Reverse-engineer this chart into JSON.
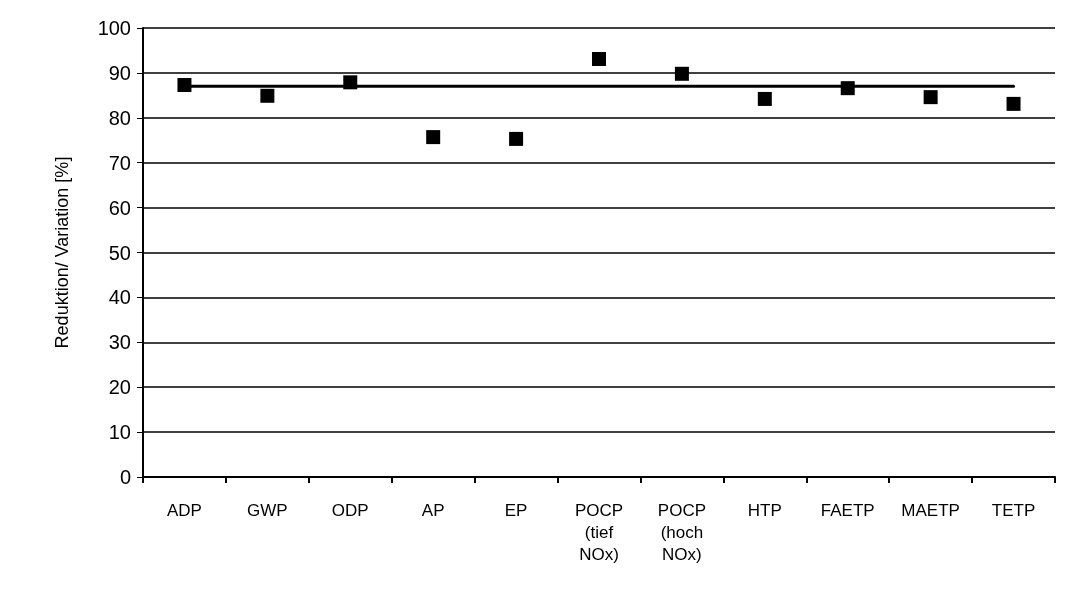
{
  "chart_data": {
    "type": "scatter",
    "ylabel": "Reduktion/ Variation [%]",
    "categories": [
      "ADP",
      "GWP",
      "ODP",
      "AP",
      "EP",
      "POCP (tief NOx)",
      "POCP (hoch NOx)",
      "HTP",
      "FAETP",
      "MAETP",
      "TETP"
    ],
    "series": [
      {
        "color": "#000000",
        "marker": "square",
        "values": [
          87.3,
          84.9,
          87.9,
          75.7,
          75.3,
          93.1,
          89.8,
          84.2,
          86.6,
          84.6,
          83.1
        ]
      },
      {
        "type": "line",
        "color": "#000000",
        "marker": "none",
        "line_style": "solid",
        "values": [
          87,
          87,
          87,
          87,
          87,
          87,
          87,
          87,
          87,
          87,
          87
        ]
      }
    ],
    "ylim": [
      0,
      100
    ],
    "yticks": [
      0,
      10,
      20,
      30,
      40,
      50,
      60,
      70,
      80,
      90,
      100
    ],
    "grid": "y"
  }
}
